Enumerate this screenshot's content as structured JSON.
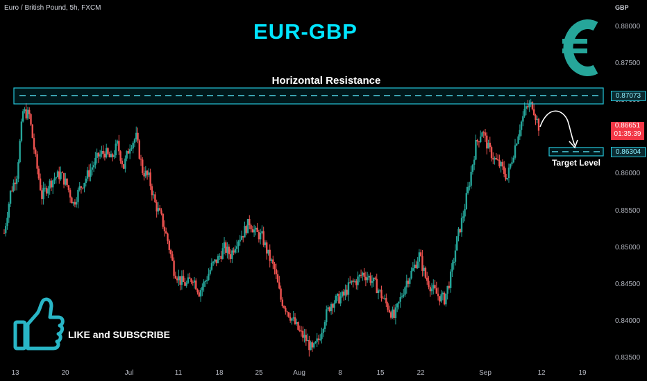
{
  "header": {
    "symbol_legend": "Euro / British Pound, 5h, FXCM",
    "title": "EUR-GBP",
    "currency": "GBP",
    "logo_icon": "euro-sign-icon"
  },
  "annotations": {
    "resistance_label": "Horizontal Resistance",
    "resistance_level": "0.87073",
    "target_label": "Target Level",
    "target_level": "0.86304",
    "current_price": "0.86651",
    "countdown": "01:35:39",
    "cta_text": "LIKE and SUBSCRIBE",
    "cta_icon": "thumbs-up-icon"
  },
  "colors": {
    "up": "#26a69a",
    "down": "#ef5350",
    "accent": "#00e5ff",
    "price_tag": "#f23645"
  },
  "chart_data": {
    "type": "candlestick",
    "title": "EUR-GBP",
    "xlabel": "",
    "ylabel": "",
    "y_ticks": [
      "0.88000",
      "0.87500",
      "0.87000",
      "0.86500",
      "0.86000",
      "0.85500",
      "0.85000",
      "0.84500",
      "0.84000",
      "0.83500"
    ],
    "x_ticks": [
      "13",
      "20",
      "Jul",
      "11",
      "18",
      "25",
      "Aug",
      "8",
      "15",
      "22",
      "Sep",
      "12",
      "19"
    ],
    "ylim": [
      0.8345,
      0.8822
    ],
    "grid": false,
    "resistance": 0.87073,
    "target": 0.86304,
    "last_price": 0.86651,
    "series": [
      {
        "day": 0,
        "close": 0.852
      },
      {
        "day": 1,
        "close": 0.8575
      },
      {
        "day": 2,
        "close": 0.86
      },
      {
        "day": 3,
        "close": 0.8685
      },
      {
        "day": 4,
        "close": 0.868
      },
      {
        "day": 5,
        "close": 0.862
      },
      {
        "day": 6,
        "close": 0.857
      },
      {
        "day": 7,
        "close": 0.8585
      },
      {
        "day": 8,
        "close": 0.8595
      },
      {
        "day": 9,
        "close": 0.86
      },
      {
        "day": 10,
        "close": 0.8585
      },
      {
        "day": 11,
        "close": 0.856
      },
      {
        "day": 12,
        "close": 0.858
      },
      {
        "day": 13,
        "close": 0.8595
      },
      {
        "day": 14,
        "close": 0.861
      },
      {
        "day": 15,
        "close": 0.8625
      },
      {
        "day": 16,
        "close": 0.863
      },
      {
        "day": 17,
        "close": 0.862
      },
      {
        "day": 18,
        "close": 0.864
      },
      {
        "day": 19,
        "close": 0.861
      },
      {
        "day": 20,
        "close": 0.864
      },
      {
        "day": 21,
        "close": 0.865
      },
      {
        "day": 22,
        "close": 0.8605
      },
      {
        "day": 23,
        "close": 0.8595
      },
      {
        "day": 24,
        "close": 0.856
      },
      {
        "day": 25,
        "close": 0.854
      },
      {
        "day": 26,
        "close": 0.851
      },
      {
        "day": 27,
        "close": 0.847
      },
      {
        "day": 28,
        "close": 0.8455
      },
      {
        "day": 29,
        "close": 0.845
      },
      {
        "day": 30,
        "close": 0.846
      },
      {
        "day": 31,
        "close": 0.844
      },
      {
        "day": 32,
        "close": 0.8455
      },
      {
        "day": 33,
        "close": 0.8475
      },
      {
        "day": 34,
        "close": 0.8485
      },
      {
        "day": 35,
        "close": 0.85
      },
      {
        "day": 36,
        "close": 0.849
      },
      {
        "day": 37,
        "close": 0.851
      },
      {
        "day": 38,
        "close": 0.852
      },
      {
        "day": 39,
        "close": 0.8535
      },
      {
        "day": 40,
        "close": 0.852
      },
      {
        "day": 41,
        "close": 0.8515
      },
      {
        "day": 42,
        "close": 0.849
      },
      {
        "day": 43,
        "close": 0.847
      },
      {
        "day": 44,
        "close": 0.843
      },
      {
        "day": 45,
        "close": 0.8415
      },
      {
        "day": 46,
        "close": 0.84
      },
      {
        "day": 47,
        "close": 0.8385
      },
      {
        "day": 48,
        "close": 0.8375
      },
      {
        "day": 49,
        "close": 0.836
      },
      {
        "day": 50,
        "close": 0.8375
      },
      {
        "day": 51,
        "close": 0.8405
      },
      {
        "day": 52,
        "close": 0.8425
      },
      {
        "day": 53,
        "close": 0.843
      },
      {
        "day": 54,
        "close": 0.8435
      },
      {
        "day": 55,
        "close": 0.845
      },
      {
        "day": 56,
        "close": 0.8455
      },
      {
        "day": 57,
        "close": 0.8465
      },
      {
        "day": 58,
        "close": 0.846
      },
      {
        "day": 59,
        "close": 0.845
      },
      {
        "day": 60,
        "close": 0.8435
      },
      {
        "day": 61,
        "close": 0.842
      },
      {
        "day": 62,
        "close": 0.8405
      },
      {
        "day": 63,
        "close": 0.843
      },
      {
        "day": 64,
        "close": 0.8455
      },
      {
        "day": 65,
        "close": 0.847
      },
      {
        "day": 66,
        "close": 0.849
      },
      {
        "day": 67,
        "close": 0.846
      },
      {
        "day": 68,
        "close": 0.8445
      },
      {
        "day": 69,
        "close": 0.8435
      },
      {
        "day": 70,
        "close": 0.843
      },
      {
        "day": 71,
        "close": 0.846
      },
      {
        "day": 72,
        "close": 0.851
      },
      {
        "day": 73,
        "close": 0.8545
      },
      {
        "day": 74,
        "close": 0.859
      },
      {
        "day": 75,
        "close": 0.864
      },
      {
        "day": 76,
        "close": 0.866
      },
      {
        "day": 77,
        "close": 0.8635
      },
      {
        "day": 78,
        "close": 0.862
      },
      {
        "day": 79,
        "close": 0.861
      },
      {
        "day": 80,
        "close": 0.8595
      },
      {
        "day": 81,
        "close": 0.863
      },
      {
        "day": 82,
        "close": 0.8665
      },
      {
        "day": 83,
        "close": 0.869
      },
      {
        "day": 84,
        "close": 0.8695
      },
      {
        "day": 85,
        "close": 0.8665
      }
    ]
  }
}
